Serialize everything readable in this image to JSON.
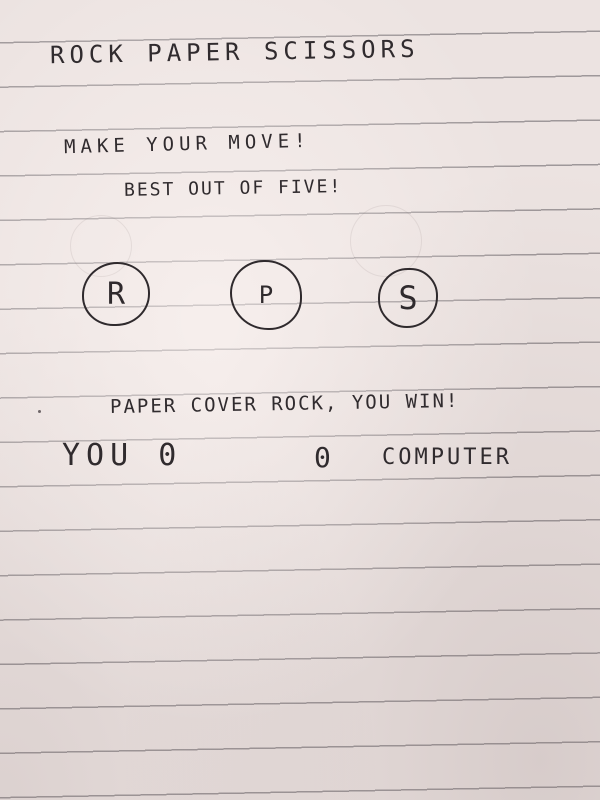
{
  "game": {
    "title": "ROCK PAPER SCISSORS",
    "prompt": "MAKE YOUR MOVE!",
    "subprompt": "BEST OUT OF FIVE!",
    "choices": [
      {
        "letter": "R"
      },
      {
        "letter": "P"
      },
      {
        "letter": "S"
      }
    ],
    "result_message": "PAPER COVER ROCK, YOU WIN!",
    "score": {
      "you_label": "YOU",
      "you_value": "0",
      "computer_value": "0",
      "computer_label": "COMPUTER"
    }
  }
}
